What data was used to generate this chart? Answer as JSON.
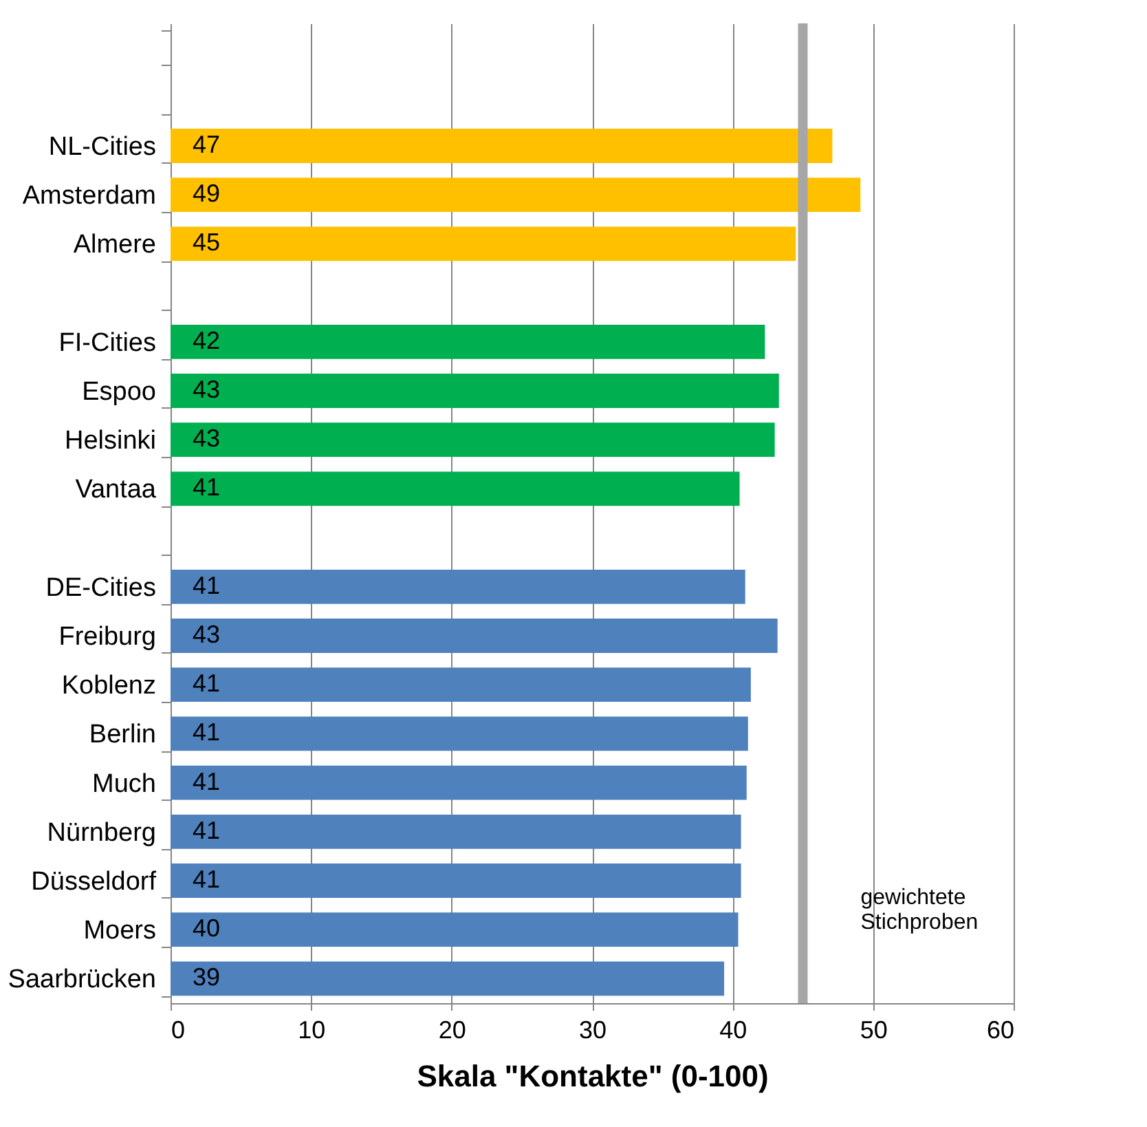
{
  "chart_data": {
    "type": "bar",
    "orientation": "horizontal",
    "xlabel": "Skala \"Kontakte\" (0-100)",
    "categories": [
      null,
      null,
      "NL-Cities",
      "Amsterdam",
      "Almere",
      null,
      "FI-Cities",
      "Espoo",
      "Helsinki",
      "Vantaa",
      null,
      "DE-Cities",
      "Freiburg",
      "Koblenz",
      "Berlin",
      "Much",
      "Nürnberg",
      "Düsseldorf",
      "Moers",
      "Saarbrücken"
    ],
    "values": [
      null,
      null,
      47.1,
      49.1,
      44.5,
      null,
      42.3,
      43.3,
      43.0,
      40.5,
      null,
      40.9,
      43.2,
      41.3,
      41.1,
      41.0,
      40.6,
      40.6,
      40.4,
      39.4
    ],
    "value_labels": [
      null,
      null,
      "47",
      "49",
      "45",
      null,
      "42",
      "43",
      "43",
      "41",
      null,
      "41",
      "43",
      "41",
      "41",
      "41",
      "41",
      "41",
      "40",
      "39"
    ],
    "colors": [
      null,
      null,
      "#ffc000",
      "#ffc000",
      "#ffc000",
      null,
      "#00b050",
      "#00b050",
      "#00b050",
      "#00b050",
      null,
      "#4f81bd",
      "#4f81bd",
      "#4f81bd",
      "#4f81bd",
      "#4f81bd",
      "#4f81bd",
      "#4f81bd",
      "#4f81bd",
      "#4f81bd"
    ],
    "xlim": [
      0,
      60
    ],
    "xticks": [
      0,
      10,
      20,
      30,
      40,
      50,
      60
    ],
    "grid": "x",
    "ref_lines": [
      {
        "axis": "x",
        "value": 45,
        "label": "gewichtete Stichproben",
        "color": "#a6a6a6"
      }
    ]
  }
}
